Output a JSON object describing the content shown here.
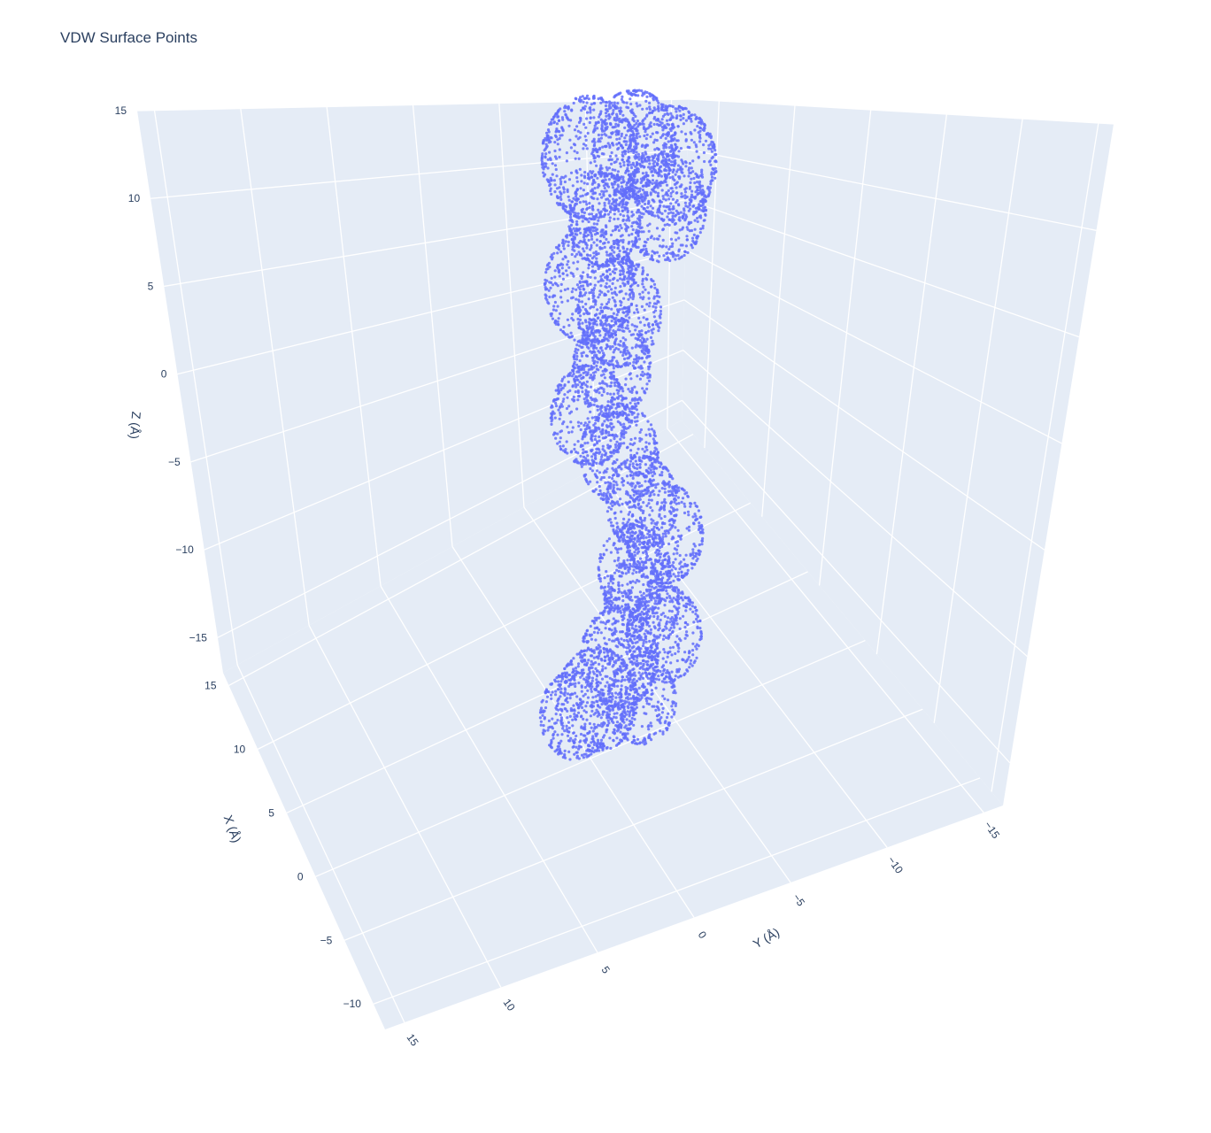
{
  "chart_data": {
    "type": "scatter",
    "mode": "3d",
    "title": "VDW Surface Points",
    "xlabel": "X (Å)",
    "ylabel": "Y (Å)",
    "zlabel": "Z (Å)",
    "xticks": [
      "−10",
      "−5",
      "0",
      "5",
      "10",
      "15"
    ],
    "yticks": [
      "15",
      "10",
      "5",
      "0",
      "−5",
      "−10",
      "−15"
    ],
    "zticks": [
      "−15",
      "−10",
      "−5",
      "0",
      "5",
      "10",
      "15"
    ],
    "xlim": [
      -12,
      16
    ],
    "ylim": [
      16,
      -16
    ],
    "zlim": [
      -17,
      15
    ],
    "grid": true,
    "marker_color": "#636efa",
    "series": [
      {
        "spheres": [
          {
            "y": 3.5,
            "z": 12.8,
            "r": 3.2
          },
          {
            "y": 0.5,
            "z": 13.5,
            "r": 2.8
          },
          {
            "y": -2.0,
            "z": 12.5,
            "r": 3.0
          },
          {
            "y": -1.5,
            "z": 10.2,
            "r": 2.8
          },
          {
            "y": 2.5,
            "z": 9.6,
            "r": 2.4
          },
          {
            "y": 3.5,
            "z": 6.2,
            "r": 3.0
          },
          {
            "y": 1.5,
            "z": 4.8,
            "r": 2.8
          },
          {
            "y": 2.0,
            "z": 2.0,
            "r": 2.6
          },
          {
            "y": 3.5,
            "z": -0.5,
            "r": 2.6
          },
          {
            "y": 1.5,
            "z": -2.5,
            "r": 2.6
          },
          {
            "y": 0.0,
            "z": -5.0,
            "r": 2.4
          },
          {
            "y": -1.5,
            "z": -6.6,
            "r": 2.6
          },
          {
            "y": 0.5,
            "z": -8.5,
            "r": 2.4
          },
          {
            "y": 0.0,
            "z": -10.3,
            "r": 2.5
          },
          {
            "y": -1.5,
            "z": -11.8,
            "r": 2.5
          },
          {
            "y": 1.5,
            "z": -13.0,
            "r": 2.6
          },
          {
            "y": 3.0,
            "z": -15.2,
            "r": 2.7
          },
          {
            "y": 4.5,
            "z": -16.0,
            "r": 2.3
          },
          {
            "y": 0.0,
            "z": -15.2,
            "r": 2.3
          }
        ]
      }
    ]
  }
}
